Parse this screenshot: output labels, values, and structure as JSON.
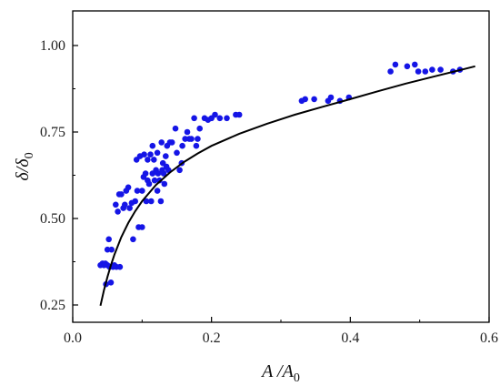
{
  "chart_data": {
    "type": "scatter",
    "title": "",
    "xlabel": "A /A0",
    "ylabel": "δ/δ0",
    "xlabel_parts": {
      "main": "A /A",
      "sub": "0"
    },
    "ylabel_parts": {
      "main": "δ/δ",
      "sub": "0"
    },
    "xlim": [
      0.0,
      0.6
    ],
    "ylim": [
      0.2,
      1.1
    ],
    "x_ticks": [
      0.0,
      0.2,
      0.4,
      0.6
    ],
    "x_tick_labels": [
      "0.0",
      "0.2",
      "0.4",
      "0.6"
    ],
    "y_ticks": [
      0.25,
      0.5,
      0.75,
      1.0
    ],
    "y_tick_labels": [
      "0.25",
      "0.50",
      "0.75",
      "1.00"
    ],
    "grid": false,
    "point_color": "#1515e6",
    "curve_color": "#000000",
    "series": [
      {
        "kind": "scatter",
        "points": [
          [
            0.04,
            0.365
          ],
          [
            0.043,
            0.37
          ],
          [
            0.045,
            0.365
          ],
          [
            0.047,
            0.37
          ],
          [
            0.048,
            0.31
          ],
          [
            0.05,
            0.365
          ],
          [
            0.05,
            0.41
          ],
          [
            0.052,
            0.44
          ],
          [
            0.053,
            0.36
          ],
          [
            0.055,
            0.315
          ],
          [
            0.056,
            0.41
          ],
          [
            0.058,
            0.36
          ],
          [
            0.06,
            0.365
          ],
          [
            0.062,
            0.54
          ],
          [
            0.063,
            0.36
          ],
          [
            0.065,
            0.52
          ],
          [
            0.067,
            0.57
          ],
          [
            0.068,
            0.36
          ],
          [
            0.07,
            0.57
          ],
          [
            0.073,
            0.53
          ],
          [
            0.075,
            0.54
          ],
          [
            0.077,
            0.58
          ],
          [
            0.08,
            0.59
          ],
          [
            0.082,
            0.53
          ],
          [
            0.085,
            0.545
          ],
          [
            0.087,
            0.44
          ],
          [
            0.09,
            0.55
          ],
          [
            0.092,
            0.67
          ],
          [
            0.093,
            0.58
          ],
          [
            0.095,
            0.475
          ],
          [
            0.097,
            0.68
          ],
          [
            0.1,
            0.475
          ],
          [
            0.1,
            0.58
          ],
          [
            0.102,
            0.62
          ],
          [
            0.103,
            0.685
          ],
          [
            0.105,
            0.63
          ],
          [
            0.106,
            0.55
          ],
          [
            0.108,
            0.67
          ],
          [
            0.108,
            0.61
          ],
          [
            0.11,
            0.6
          ],
          [
            0.112,
            0.685
          ],
          [
            0.113,
            0.55
          ],
          [
            0.115,
            0.63
          ],
          [
            0.115,
            0.71
          ],
          [
            0.117,
            0.67
          ],
          [
            0.118,
            0.61
          ],
          [
            0.12,
            0.64
          ],
          [
            0.122,
            0.69
          ],
          [
            0.122,
            0.58
          ],
          [
            0.123,
            0.63
          ],
          [
            0.125,
            0.61
          ],
          [
            0.127,
            0.55
          ],
          [
            0.128,
            0.72
          ],
          [
            0.129,
            0.64
          ],
          [
            0.13,
            0.66
          ],
          [
            0.131,
            0.63
          ],
          [
            0.132,
            0.6
          ],
          [
            0.134,
            0.68
          ],
          [
            0.135,
            0.65
          ],
          [
            0.136,
            0.71
          ],
          [
            0.138,
            0.64
          ],
          [
            0.14,
            0.72
          ],
          [
            0.143,
            0.72
          ],
          [
            0.148,
            0.76
          ],
          [
            0.15,
            0.69
          ],
          [
            0.154,
            0.64
          ],
          [
            0.157,
            0.66
          ],
          [
            0.158,
            0.71
          ],
          [
            0.162,
            0.73
          ],
          [
            0.165,
            0.75
          ],
          [
            0.168,
            0.73
          ],
          [
            0.171,
            0.73
          ],
          [
            0.175,
            0.79
          ],
          [
            0.178,
            0.71
          ],
          [
            0.18,
            0.73
          ],
          [
            0.183,
            0.76
          ],
          [
            0.19,
            0.79
          ],
          [
            0.195,
            0.785
          ],
          [
            0.2,
            0.79
          ],
          [
            0.205,
            0.8
          ],
          [
            0.212,
            0.79
          ],
          [
            0.222,
            0.79
          ],
          [
            0.235,
            0.8
          ],
          [
            0.24,
            0.8
          ],
          [
            0.33,
            0.84
          ],
          [
            0.335,
            0.845
          ],
          [
            0.348,
            0.845
          ],
          [
            0.368,
            0.84
          ],
          [
            0.372,
            0.85
          ],
          [
            0.385,
            0.84
          ],
          [
            0.398,
            0.85
          ],
          [
            0.458,
            0.925
          ],
          [
            0.465,
            0.945
          ],
          [
            0.482,
            0.94
          ],
          [
            0.493,
            0.945
          ],
          [
            0.498,
            0.925
          ],
          [
            0.508,
            0.925
          ],
          [
            0.518,
            0.93
          ],
          [
            0.53,
            0.93
          ],
          [
            0.548,
            0.925
          ],
          [
            0.558,
            0.93
          ]
        ]
      },
      {
        "kind": "line",
        "points": [
          [
            0.04,
            0.248
          ],
          [
            0.045,
            0.292
          ],
          [
            0.05,
            0.331
          ],
          [
            0.055,
            0.365
          ],
          [
            0.06,
            0.395
          ],
          [
            0.07,
            0.446
          ],
          [
            0.08,
            0.487
          ],
          [
            0.09,
            0.521
          ],
          [
            0.1,
            0.55
          ],
          [
            0.12,
            0.597
          ],
          [
            0.14,
            0.633
          ],
          [
            0.16,
            0.663
          ],
          [
            0.18,
            0.688
          ],
          [
            0.2,
            0.71
          ],
          [
            0.24,
            0.745
          ],
          [
            0.28,
            0.774
          ],
          [
            0.32,
            0.8
          ],
          [
            0.36,
            0.823
          ],
          [
            0.4,
            0.845
          ],
          [
            0.44,
            0.868
          ],
          [
            0.48,
            0.89
          ],
          [
            0.52,
            0.91
          ],
          [
            0.56,
            0.93
          ],
          [
            0.58,
            0.94
          ]
        ]
      }
    ]
  }
}
